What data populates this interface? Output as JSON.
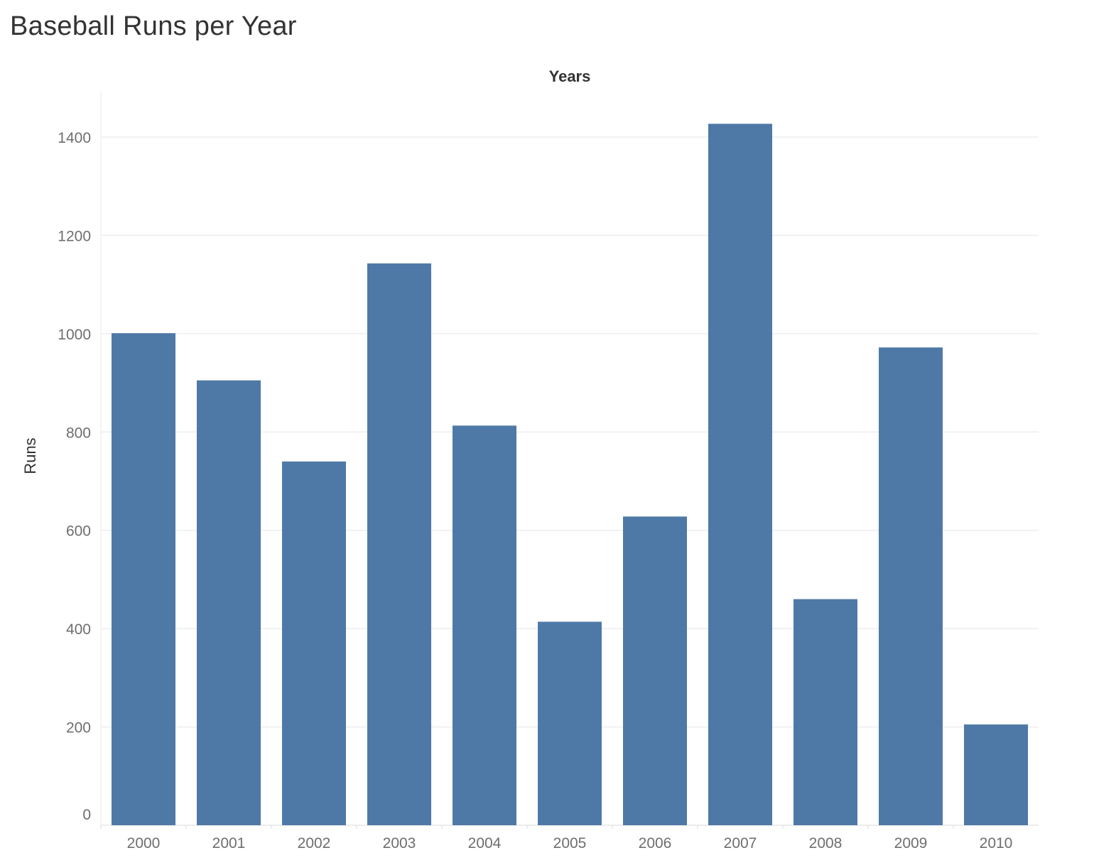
{
  "chart_data": {
    "type": "bar",
    "title": "Baseball Runs per Year",
    "xlabel": "Years",
    "ylabel": "Runs",
    "categories": [
      "2000",
      "2001",
      "2002",
      "2003",
      "2004",
      "2005",
      "2006",
      "2007",
      "2008",
      "2009",
      "2010"
    ],
    "values": [
      1001,
      905,
      740,
      1143,
      813,
      414,
      628,
      1427,
      460,
      972,
      205
    ],
    "ylim": [
      0,
      1500
    ],
    "yticks": [
      0,
      200,
      400,
      600,
      800,
      1000,
      1200,
      1400
    ],
    "grid": true,
    "bar_color": "#4e79a7",
    "grid_color": "#ededed",
    "axis_label_position": "top"
  }
}
